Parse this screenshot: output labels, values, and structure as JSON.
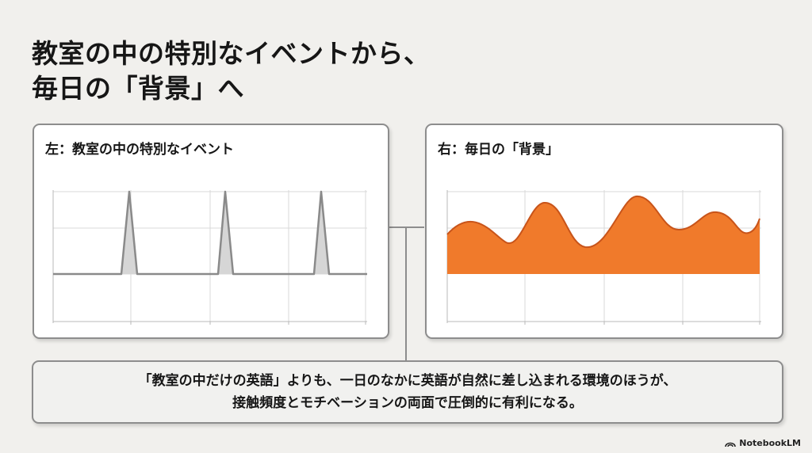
{
  "title": {
    "line1": "教室の中の特別なイベントから、",
    "line2": "毎日の「背景」へ"
  },
  "left_panel": {
    "title": "左：教室の中の特別なイベント"
  },
  "right_panel": {
    "title": "右：毎日の「背景」"
  },
  "note": {
    "line1": "「教室の中だけの英語」よりも、一日のなかに英語が自然に差し込まれる環境のほうが、",
    "line2": "接触頻度とモチベーションの両面で圧倒的に有利になる。"
  },
  "brand": {
    "label": "NotebookLM",
    "icon": "notebooklm-logo-icon"
  },
  "colors": {
    "spike_stroke": "#8a8a8a",
    "spike_fill": "#d6d6d6",
    "wave_fill": "#f07a2b",
    "wave_stroke": "#c8541a",
    "grid": "#d9d9d9",
    "border": "#8d8d8d"
  }
}
